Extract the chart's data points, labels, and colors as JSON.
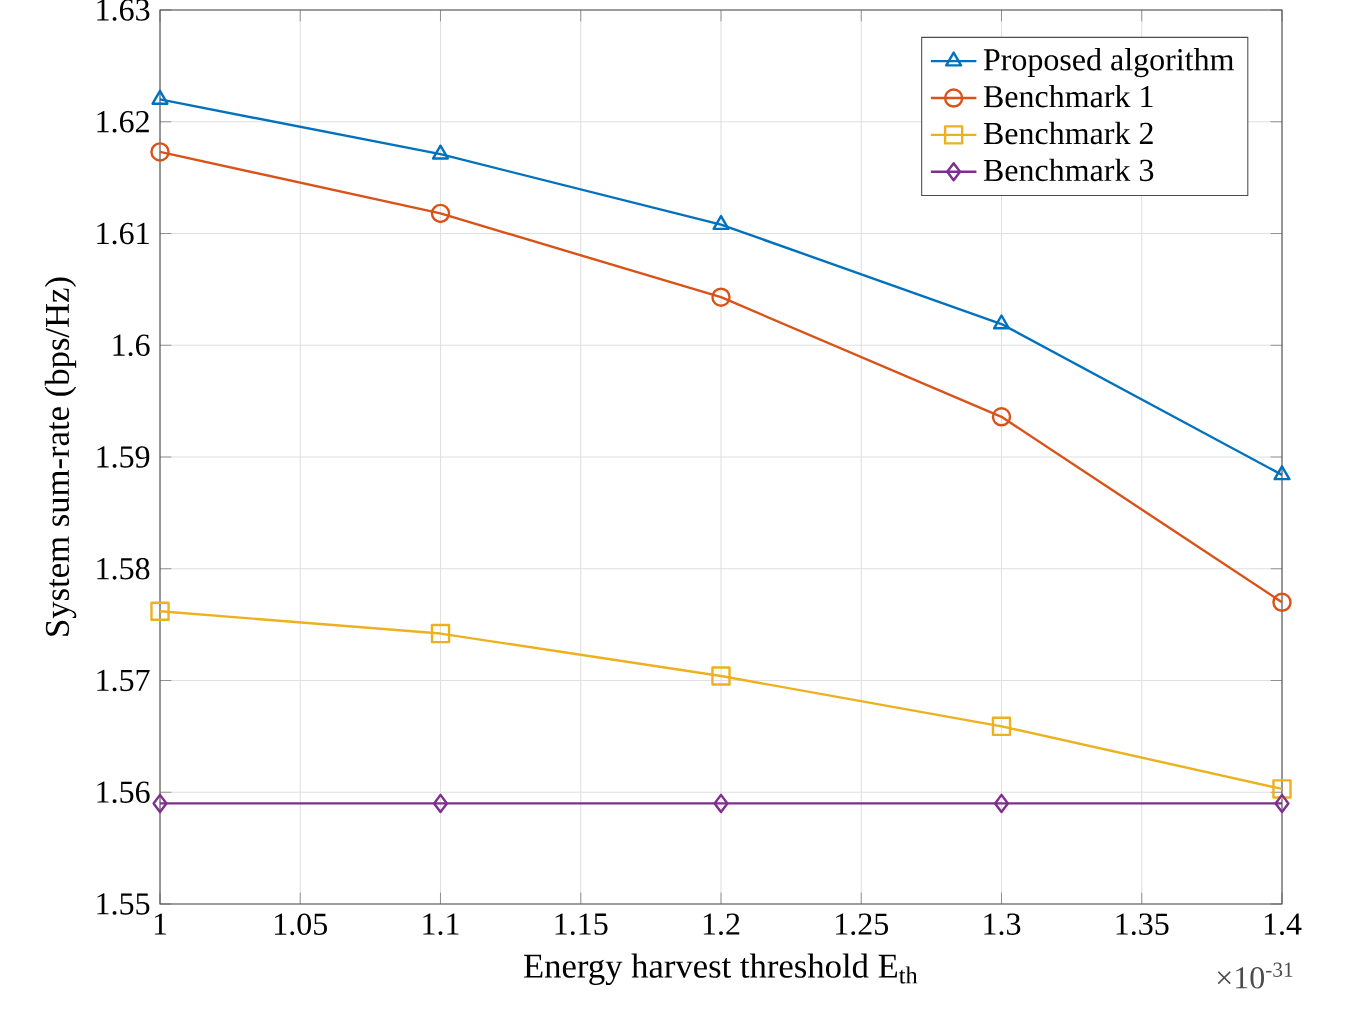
{
  "chart_data": {
    "type": "line",
    "xlabel": "Energy harvest threshold E$_{th}$",
    "ylabel": "System sum-rate (bps/Hz)",
    "annotations": [
      "×10$^{-31}$"
    ],
    "x": [
      1,
      1.1,
      1.2,
      1.3,
      1.4
    ],
    "series": [
      {
        "name": "Proposed algorithm",
        "color": "#0072bd",
        "marker": "triangle",
        "values": [
          1.622,
          1.6171,
          1.6108,
          1.6019,
          1.5884
        ]
      },
      {
        "name": "Benchmark 1",
        "color": "#d95319",
        "marker": "circle",
        "values": [
          1.6173,
          1.6118,
          1.6043,
          1.5936,
          1.577
        ]
      },
      {
        "name": "Benchmark 2",
        "color": "#edb120",
        "marker": "square",
        "values": [
          1.5762,
          1.5742,
          1.5704,
          1.5659,
          1.5603
        ]
      },
      {
        "name": "Benchmark 3",
        "color": "#7e2f8e",
        "marker": "diamond",
        "values": [
          1.559,
          1.559,
          1.559,
          1.559,
          1.559
        ]
      }
    ],
    "xlim": [
      1,
      1.4
    ],
    "xticks": [
      1,
      1.05,
      1.1,
      1.15,
      1.2,
      1.25,
      1.3,
      1.35,
      1.4
    ],
    "ylim": [
      1.55,
      1.63
    ],
    "yticks": [
      1.55,
      1.56,
      1.57,
      1.58,
      1.59,
      1.6,
      1.61,
      1.62,
      1.63
    ],
    "grid": true,
    "legend": "top right",
    "line_style": "solid"
  }
}
